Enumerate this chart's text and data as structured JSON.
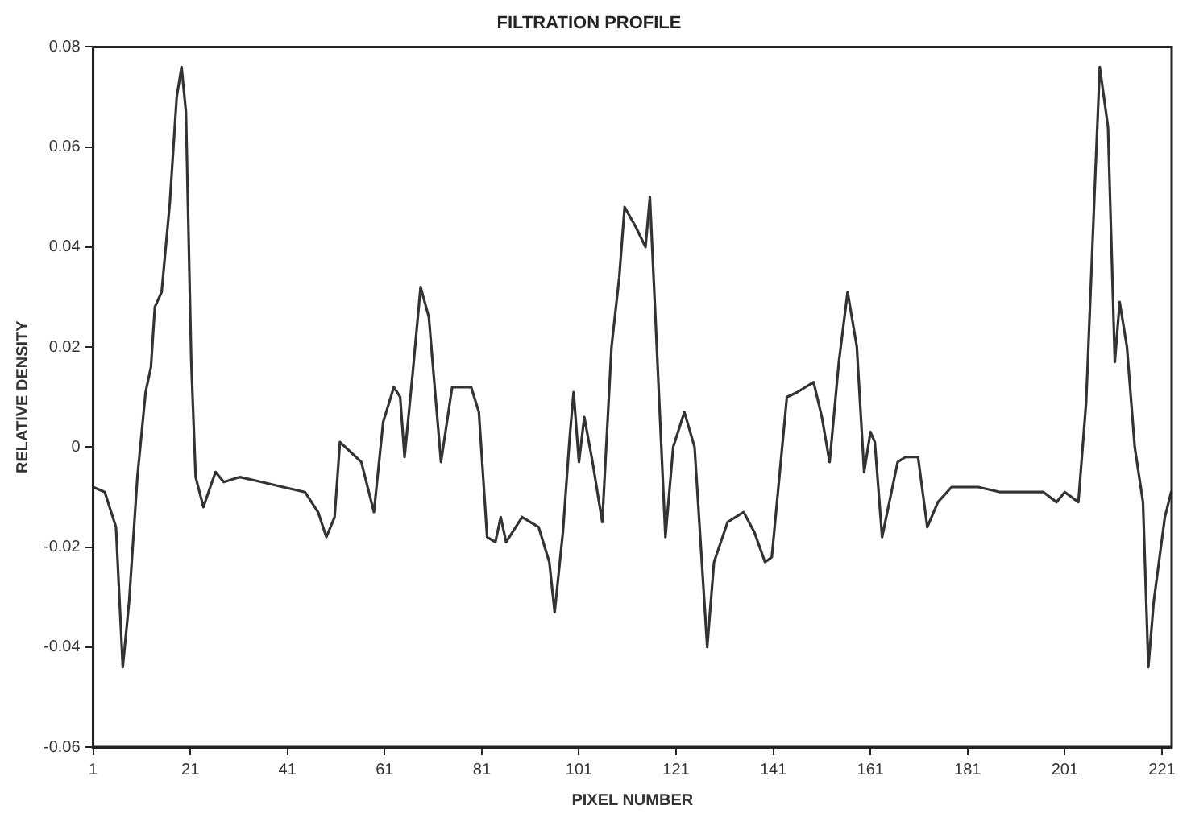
{
  "chart_data": {
    "type": "line",
    "title": "FILTRATION PROFILE",
    "xlabel": "PIXEL NUMBER",
    "ylabel": "RELATIVE DENSITY",
    "grid": false,
    "legend": false,
    "marker": "none",
    "line_style": "solid",
    "xlim": [
      1,
      223
    ],
    "xticks": [
      1,
      21,
      41,
      61,
      81,
      101,
      121,
      141,
      161,
      181,
      201,
      221
    ],
    "ylim": [
      -0.06,
      0.08
    ],
    "yticks": [
      -0.06,
      -0.04,
      -0.02,
      0,
      0.02,
      0.04,
      0.06,
      0.08
    ],
    "series": [
      {
        "color": "#333333",
        "x": [
          1,
          3.4,
          5.7,
          7.1,
          8.4,
          10.1,
          11.8,
          12.9,
          13.7,
          15.1,
          16.8,
          18.2,
          19.2,
          20.1,
          21.2,
          22.1,
          23.7,
          25.1,
          26.2,
          27.9,
          31.2,
          35.7,
          40.1,
          44.6,
          47.3,
          49,
          50.7,
          51.8,
          54,
          56.2,
          58.8,
          60.7,
          62.9,
          64.2,
          65.1,
          66.8,
          68.4,
          70.1,
          72.6,
          74.9,
          78.8,
          80.4,
          82.1,
          83.8,
          84.9,
          86,
          89.3,
          92.7,
          94.9,
          96,
          97.7,
          99.1,
          99.9,
          101,
          102.1,
          103.8,
          105.8,
          107.7,
          109.3,
          110.4,
          112.7,
          114.7,
          115.6,
          116.6,
          118.8,
          120.4,
          122.7,
          124.8,
          127.4,
          128.8,
          131.6,
          134.9,
          137.1,
          139.3,
          140.7,
          143.8,
          146,
          149.3,
          151,
          152.6,
          154.5,
          156.3,
          158.2,
          159.7,
          161,
          161.9,
          163.4,
          166.6,
          168.2,
          170.8,
          172.7,
          174.9,
          177.7,
          183.2,
          187.7,
          192.1,
          196.6,
          199.3,
          201,
          203.8,
          205.4,
          207.1,
          208.2,
          209.9,
          211.3,
          212.3,
          213.8,
          215.4,
          217.1,
          218.2,
          219.3,
          221.6,
          222.9
        ],
        "values": [
          -0.008,
          -0.009,
          -0.016,
          -0.044,
          -0.031,
          -0.006,
          0.011,
          0.016,
          0.028,
          0.031,
          0.049,
          0.07,
          0.076,
          0.067,
          0.017,
          -0.006,
          -0.012,
          -0.008,
          -0.005,
          -0.007,
          -0.006,
          -0.007,
          -0.008,
          -0.009,
          -0.013,
          -0.018,
          -0.014,
          0.001,
          -0.001,
          -0.003,
          -0.013,
          0.005,
          0.012,
          0.01,
          -0.002,
          0.015,
          0.032,
          0.026,
          -0.003,
          0.012,
          0.012,
          0.007,
          -0.018,
          -0.019,
          -0.014,
          -0.019,
          -0.014,
          -0.016,
          -0.023,
          -0.033,
          -0.017,
          0.002,
          0.011,
          -0.003,
          0.006,
          -0.003,
          -0.015,
          0.02,
          0.034,
          0.048,
          0.044,
          0.04,
          0.05,
          0.029,
          -0.018,
          0,
          0.007,
          0,
          -0.04,
          -0.023,
          -0.015,
          -0.013,
          -0.017,
          -0.023,
          -0.022,
          0.01,
          0.011,
          0.013,
          0.006,
          -0.003,
          0.017,
          0.031,
          0.02,
          -0.005,
          0.003,
          0.001,
          -0.018,
          -0.003,
          -0.002,
          -0.002,
          -0.016,
          -0.011,
          -0.008,
          -0.008,
          -0.009,
          -0.009,
          -0.009,
          -0.011,
          -0.009,
          -0.011,
          0.009,
          0.05,
          0.076,
          0.064,
          0.017,
          0.029,
          0.02,
          0,
          -0.011,
          -0.044,
          -0.031,
          -0.014,
          -0.009
        ]
      }
    ]
  }
}
